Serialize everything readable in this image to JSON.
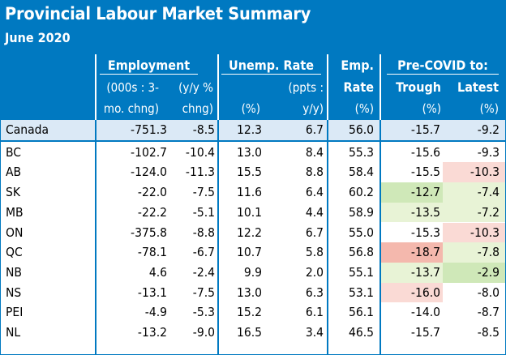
{
  "title": "Provincial Labour Market Summary",
  "subtitle": "June 2020",
  "headers": {
    "employment": "Employment",
    "emp_change_l1": "(000s : 3-",
    "emp_change_l2": "mo. chng)",
    "emp_yy_l1": "(y/y %",
    "emp_yy_l2": "chng)",
    "unemp": "Unemp. Rate",
    "unemp_pct": "(%)",
    "unemp_ppts_l1": "(ppts :",
    "unemp_ppts_l2": "y/y)",
    "emp_rate_l1": "Emp.",
    "emp_rate_l2": "Rate",
    "emp_rate_pct": "(%)",
    "precovid": "Pre-COVID to:",
    "trough": "Trough",
    "trough_pct": "(%)",
    "latest": "Latest",
    "latest_pct": "(%)"
  },
  "colors": {
    "header_blue": "#0079c1",
    "canada_row": "#dbe9f6",
    "light_green": "#e8f3d6",
    "green": "#cfe8b8",
    "light_red": "#fadad5",
    "red": "#f4b8ad"
  },
  "rows": [
    {
      "prov": "Canada",
      "emp_chg": "-751.3",
      "emp_yy": "-8.5",
      "unemp": "12.3",
      "unemp_chg": "6.7",
      "emp_rate": "56.0",
      "trough": "-15.7",
      "latest": "-9.2",
      "trough_shade": "",
      "latest_shade": ""
    },
    {
      "prov": "BC",
      "emp_chg": "-102.7",
      "emp_yy": "-10.4",
      "unemp": "13.0",
      "unemp_chg": "8.4",
      "emp_rate": "55.3",
      "trough": "-15.6",
      "latest": "-9.3",
      "trough_shade": "",
      "latest_shade": ""
    },
    {
      "prov": "AB",
      "emp_chg": "-124.0",
      "emp_yy": "-11.3",
      "unemp": "15.5",
      "unemp_chg": "8.8",
      "emp_rate": "58.4",
      "trough": "-15.5",
      "latest": "-10.3",
      "trough_shade": "",
      "latest_shade": "light_red"
    },
    {
      "prov": "SK",
      "emp_chg": "-22.0",
      "emp_yy": "-7.5",
      "unemp": "11.6",
      "unemp_chg": "6.4",
      "emp_rate": "60.2",
      "trough": "-12.7",
      "latest": "-7.4",
      "trough_shade": "green",
      "latest_shade": "light_green"
    },
    {
      "prov": "MB",
      "emp_chg": "-22.2",
      "emp_yy": "-5.1",
      "unemp": "10.1",
      "unemp_chg": "4.4",
      "emp_rate": "58.9",
      "trough": "-13.5",
      "latest": "-7.2",
      "trough_shade": "light_green",
      "latest_shade": "light_green"
    },
    {
      "prov": "ON",
      "emp_chg": "-375.8",
      "emp_yy": "-8.8",
      "unemp": "12.2",
      "unemp_chg": "6.7",
      "emp_rate": "55.0",
      "trough": "-15.3",
      "latest": "-10.3",
      "trough_shade": "",
      "latest_shade": "light_red"
    },
    {
      "prov": "QC",
      "emp_chg": "-78.1",
      "emp_yy": "-6.7",
      "unemp": "10.7",
      "unemp_chg": "5.8",
      "emp_rate": "56.8",
      "trough": "-18.7",
      "latest": "-7.8",
      "trough_shade": "red",
      "latest_shade": "light_green"
    },
    {
      "prov": "NB",
      "emp_chg": "4.6",
      "emp_yy": "-2.4",
      "unemp": "9.9",
      "unemp_chg": "2.0",
      "emp_rate": "55.1",
      "trough": "-13.7",
      "latest": "-2.9",
      "trough_shade": "light_green",
      "latest_shade": "green"
    },
    {
      "prov": "NS",
      "emp_chg": "-13.1",
      "emp_yy": "-7.5",
      "unemp": "13.0",
      "unemp_chg": "6.3",
      "emp_rate": "53.1",
      "trough": "-16.0",
      "latest": "-8.0",
      "trough_shade": "light_red",
      "latest_shade": ""
    },
    {
      "prov": "PEI",
      "emp_chg": "-4.9",
      "emp_yy": "-5.3",
      "unemp": "15.2",
      "unemp_chg": "6.1",
      "emp_rate": "56.1",
      "trough": "-14.0",
      "latest": "-8.7",
      "trough_shade": "",
      "latest_shade": ""
    },
    {
      "prov": "NL",
      "emp_chg": "-13.2",
      "emp_yy": "-9.0",
      "unemp": "16.5",
      "unemp_chg": "3.4",
      "emp_rate": "46.5",
      "trough": "-15.7",
      "latest": "-8.5",
      "trough_shade": "",
      "latest_shade": ""
    }
  ]
}
